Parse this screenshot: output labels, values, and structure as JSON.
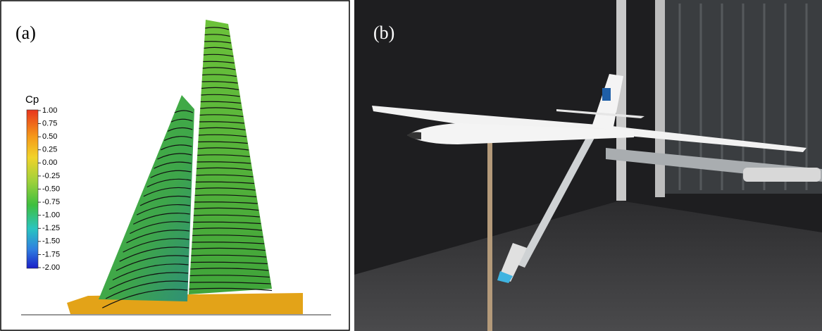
{
  "panels": [
    {
      "label": "(a)",
      "colorbar": {
        "title": "Cp",
        "ticks": [
          "1.00",
          "0.75",
          "0.50",
          "0.25",
          "0.00",
          "-0.25",
          "-0.50",
          "-0.75",
          "-1.00",
          "-1.25",
          "-1.50",
          "-1.75",
          "-2.00"
        ]
      }
    },
    {
      "label": "(b)"
    }
  ]
}
